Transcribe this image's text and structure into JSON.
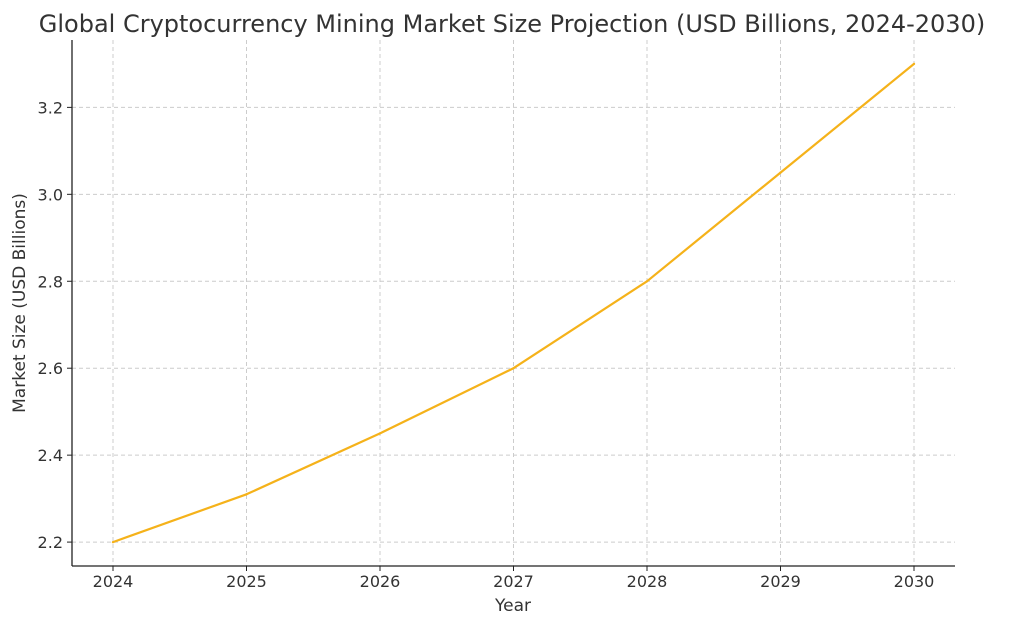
{
  "chart_data": {
    "type": "line",
    "title": "Global Cryptocurrency Mining Market Size Projection (USD Billions, 2024-2030)",
    "xlabel": "Year",
    "ylabel": "Market Size (USD Billions)",
    "categories": [
      "2024",
      "2025",
      "2026",
      "2027",
      "2028",
      "2029",
      "2030"
    ],
    "series": [
      {
        "values": [
          2.2,
          2.31,
          2.45,
          2.6,
          2.8,
          3.05,
          3.3
        ],
        "color": "#f5b21a"
      }
    ],
    "yticks": [
      "2.2",
      "2.4",
      "2.6",
      "2.8",
      "3.0",
      "3.2"
    ],
    "ylim": [
      2.145,
      3.355
    ],
    "grid": true,
    "legend": "none"
  }
}
